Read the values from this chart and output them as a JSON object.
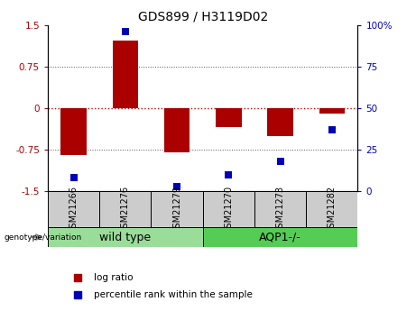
{
  "title": "GDS899 / H3119D02",
  "samples": [
    "GSM21266",
    "GSM21276",
    "GSM21279",
    "GSM21270",
    "GSM21273",
    "GSM21282"
  ],
  "log_ratio": [
    -0.85,
    1.22,
    -0.8,
    -0.35,
    -0.5,
    -0.1
  ],
  "percentile_rank": [
    8,
    96,
    3,
    10,
    18,
    37
  ],
  "groups": [
    {
      "label": "wild type",
      "start": 0,
      "end": 3,
      "color": "#99dd99"
    },
    {
      "label": "AQP1-/-",
      "start": 3,
      "end": 6,
      "color": "#55cc55"
    }
  ],
  "ylim_left": [
    -1.5,
    1.5
  ],
  "ylim_right": [
    0,
    100
  ],
  "yticks_left": [
    -1.5,
    -0.75,
    0,
    0.75,
    1.5
  ],
  "yticks_right": [
    0,
    25,
    50,
    75,
    100
  ],
  "ytick_labels_right": [
    "0",
    "25",
    "50",
    "75",
    "100%"
  ],
  "bar_color": "#aa0000",
  "dot_color": "#0000bb",
  "zero_line_color": "#cc0000",
  "dot_line_color": "#aaaaaa",
  "bar_width": 0.5,
  "dot_size": 40,
  "legend_items": [
    "log ratio",
    "percentile rank within the sample"
  ],
  "genotype_label": "genotype/variation",
  "title_fontsize": 10,
  "group_label_fontsize": 9,
  "sample_fontsize": 7,
  "legend_fontsize": 7.5,
  "tick_fontsize": 7.5
}
